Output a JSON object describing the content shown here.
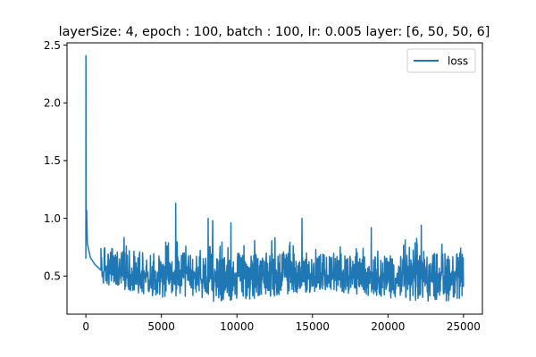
{
  "chart_data": {
    "type": "line",
    "title": "layerSize: 4, epoch : 100, batch : 100, lr: 0.005 layer: [6, 50, 50, 6]",
    "xlabel": "",
    "ylabel": "",
    "xlim": [
      -1250,
      26250
    ],
    "ylim": [
      0.17,
      2.52
    ],
    "xticks": [
      0,
      5000,
      10000,
      15000,
      20000,
      25000
    ],
    "xtick_labels": [
      "0",
      "5000",
      "10000",
      "15000",
      "20000",
      "25000"
    ],
    "yticks": [
      0.5,
      1.0,
      1.5,
      2.0,
      2.5
    ],
    "ytick_labels": [
      "0.5",
      "1.0",
      "1.5",
      "2.0",
      "2.5"
    ],
    "grid": false,
    "legend_position": "top-right",
    "color": "#1f77b4",
    "series": [
      {
        "name": "loss",
        "color": "#1f77b4",
        "x_range": [
          0,
          25000
        ],
        "initial_points": [
          [
            0,
            0.65
          ],
          [
            5,
            2.41
          ],
          [
            20,
            0.95
          ],
          [
            50,
            1.07
          ],
          [
            100,
            0.78
          ],
          [
            300,
            0.66
          ],
          [
            600,
            0.6
          ],
          [
            1000,
            0.55
          ]
        ],
        "baseline_mean": 0.52,
        "band_low": 0.32,
        "band_high": 0.82,
        "spikes": [
          [
            5950,
            1.13
          ],
          [
            8100,
            1.0
          ],
          [
            8400,
            0.98
          ],
          [
            9600,
            0.96
          ],
          [
            14300,
            1.0
          ],
          [
            22200,
            0.94
          ],
          [
            18900,
            0.92
          ]
        ]
      }
    ]
  }
}
